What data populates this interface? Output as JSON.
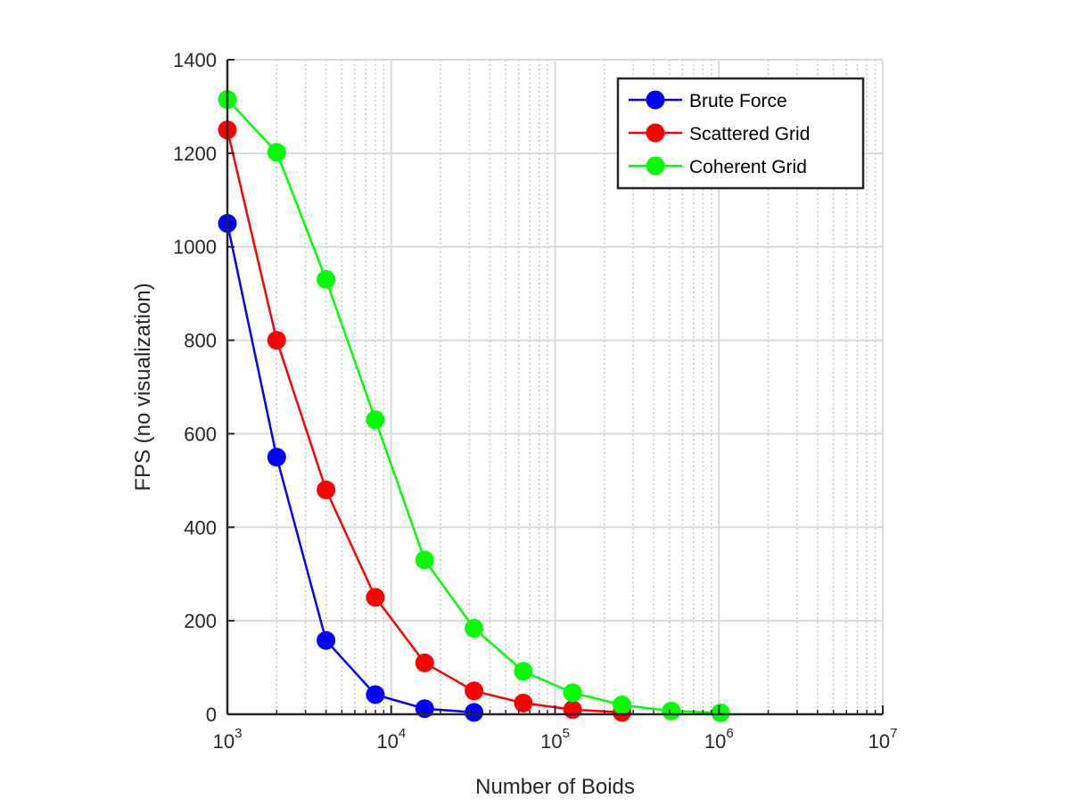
{
  "chart_data": {
    "type": "line",
    "title": "",
    "xlabel": "Number of Boids",
    "ylabel": "FPS (no visualization)",
    "xscale": "log",
    "xlim": [
      1000,
      10000000
    ],
    "ylim": [
      0,
      1400
    ],
    "yticks": [
      "0",
      "200",
      "400",
      "600",
      "800",
      "1000",
      "1200",
      "1400"
    ],
    "xticks": [
      {
        "base": "10",
        "exp": "3",
        "value": 1000
      },
      {
        "base": "10",
        "exp": "4",
        "value": 10000
      },
      {
        "base": "10",
        "exp": "5",
        "value": 100000
      },
      {
        "base": "10",
        "exp": "6",
        "value": 1000000
      },
      {
        "base": "10",
        "exp": "7",
        "value": 10000000
      }
    ],
    "grid": true,
    "legend_position": "top-right",
    "series": [
      {
        "name": "Brute Force",
        "color": "#0000ff",
        "x": [
          1000,
          2000,
          4000,
          8000,
          16000,
          32000
        ],
        "y": [
          1050,
          550,
          158,
          42,
          12,
          4
        ]
      },
      {
        "name": "Scattered Grid",
        "color": "#ff0000",
        "x": [
          1000,
          2000,
          4000,
          8000,
          16000,
          32000,
          64000,
          128000,
          256000
        ],
        "y": [
          1250,
          800,
          480,
          250,
          110,
          50,
          24,
          10,
          4
        ]
      },
      {
        "name": "Coherent Grid",
        "color": "#00ff00",
        "x": [
          1000,
          2000,
          4000,
          8000,
          16000,
          32000,
          64000,
          128000,
          256000,
          512000,
          1024000
        ],
        "y": [
          1315,
          1202,
          930,
          630,
          330,
          184,
          92,
          46,
          20,
          7,
          3
        ]
      }
    ]
  }
}
